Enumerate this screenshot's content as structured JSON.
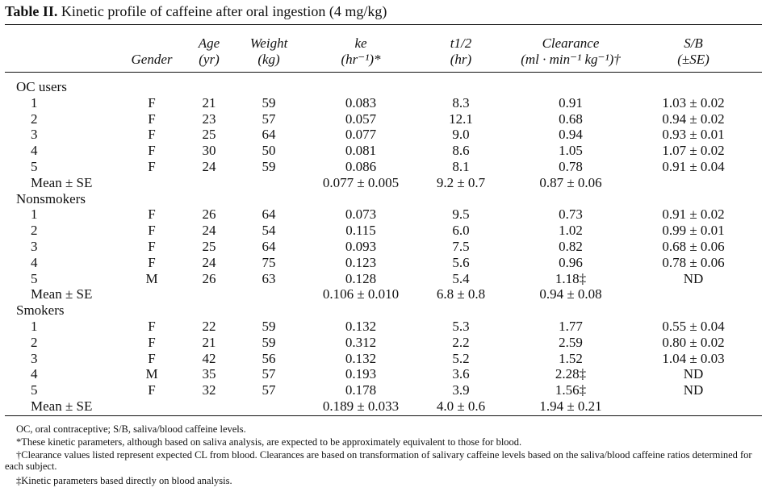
{
  "table": {
    "label": "Table II.",
    "title": "Kinetic profile of caffeine after oral ingestion (4 mg/kg)",
    "headers": {
      "gender": [
        "",
        "Gender"
      ],
      "age": [
        "Age",
        "(yr)"
      ],
      "weight": [
        "Weight",
        "(kg)"
      ],
      "ke": [
        "ke",
        "(hr⁻¹)*"
      ],
      "t_half": [
        "t1/2",
        "(hr)"
      ],
      "clearance": [
        "Clearance",
        "(ml · min⁻¹ kg⁻¹)†"
      ],
      "sb": [
        "S/B",
        "(±SE)"
      ]
    },
    "groups": [
      {
        "name": "OC users",
        "rows": [
          {
            "id": "1",
            "gender": "F",
            "age": "21",
            "weight": "59",
            "ke": "0.083",
            "t_half": "8.3",
            "clearance": "0.91",
            "sb": "1.03 ± 0.02"
          },
          {
            "id": "2",
            "gender": "F",
            "age": "23",
            "weight": "57",
            "ke": "0.057",
            "t_half": "12.1",
            "clearance": "0.68",
            "sb": "0.94 ± 0.02"
          },
          {
            "id": "3",
            "gender": "F",
            "age": "25",
            "weight": "64",
            "ke": "0.077",
            "t_half": "9.0",
            "clearance": "0.94",
            "sb": "0.93 ± 0.01"
          },
          {
            "id": "4",
            "gender": "F",
            "age": "30",
            "weight": "50",
            "ke": "0.081",
            "t_half": "8.6",
            "clearance": "1.05",
            "sb": "1.07 ± 0.02"
          },
          {
            "id": "5",
            "gender": "F",
            "age": "24",
            "weight": "59",
            "ke": "0.086",
            "t_half": "8.1",
            "clearance": "0.78",
            "sb": "0.91 ± 0.04"
          }
        ],
        "mean": {
          "label": "Mean ± SE",
          "ke": "0.077 ± 0.005",
          "t_half": "9.2 ± 0.7",
          "clearance": "0.87 ± 0.06"
        }
      },
      {
        "name": "Nonsmokers",
        "rows": [
          {
            "id": "1",
            "gender": "F",
            "age": "26",
            "weight": "64",
            "ke": "0.073",
            "t_half": "9.5",
            "clearance": "0.73",
            "sb": "0.91 ± 0.02"
          },
          {
            "id": "2",
            "gender": "F",
            "age": "24",
            "weight": "54",
            "ke": "0.115",
            "t_half": "6.0",
            "clearance": "1.02",
            "sb": "0.99 ± 0.01"
          },
          {
            "id": "3",
            "gender": "F",
            "age": "25",
            "weight": "64",
            "ke": "0.093",
            "t_half": "7.5",
            "clearance": "0.82",
            "sb": "0.68 ± 0.06"
          },
          {
            "id": "4",
            "gender": "F",
            "age": "24",
            "weight": "75",
            "ke": "0.123",
            "t_half": "5.6",
            "clearance": "0.96",
            "sb": "0.78 ± 0.06"
          },
          {
            "id": "5",
            "gender": "M",
            "age": "26",
            "weight": "63",
            "ke": "0.128",
            "t_half": "5.4",
            "clearance": "1.18‡",
            "sb": "ND"
          }
        ],
        "mean": {
          "label": "Mean ± SE",
          "ke": "0.106 ± 0.010",
          "t_half": "6.8 ± 0.8",
          "clearance": "0.94 ± 0.08"
        }
      },
      {
        "name": "Smokers",
        "rows": [
          {
            "id": "1",
            "gender": "F",
            "age": "22",
            "weight": "59",
            "ke": "0.132",
            "t_half": "5.3",
            "clearance": "1.77",
            "sb": "0.55 ± 0.04"
          },
          {
            "id": "2",
            "gender": "F",
            "age": "21",
            "weight": "59",
            "ke": "0.312",
            "t_half": "2.2",
            "clearance": "2.59",
            "sb": "0.80 ± 0.02"
          },
          {
            "id": "3",
            "gender": "F",
            "age": "42",
            "weight": "56",
            "ke": "0.132",
            "t_half": "5.2",
            "clearance": "1.52",
            "sb": "1.04 ± 0.03"
          },
          {
            "id": "4",
            "gender": "M",
            "age": "35",
            "weight": "57",
            "ke": "0.193",
            "t_half": "3.6",
            "clearance": "2.28‡",
            "sb": "ND"
          },
          {
            "id": "5",
            "gender": "F",
            "age": "32",
            "weight": "57",
            "ke": "0.178",
            "t_half": "3.9",
            "clearance": "1.56‡",
            "sb": "ND"
          }
        ],
        "mean": {
          "label": "Mean ± SE",
          "ke": "0.189 ± 0.033",
          "t_half": "4.0 ± 0.6",
          "clearance": "1.94 ± 0.21"
        }
      }
    ],
    "footnotes": [
      "OC, oral contraceptive; S/B, saliva/blood caffeine levels.",
      "*These kinetic parameters, although based on saliva analysis, are expected to be approximately equivalent to those for blood.",
      "†Clearance values listed represent expected CL from blood. Clearances are based on transformation of salivary caffeine levels based on the saliva/blood caffeine ratios determined for each subject.",
      "‡Kinetic parameters based directly on blood analysis."
    ]
  }
}
